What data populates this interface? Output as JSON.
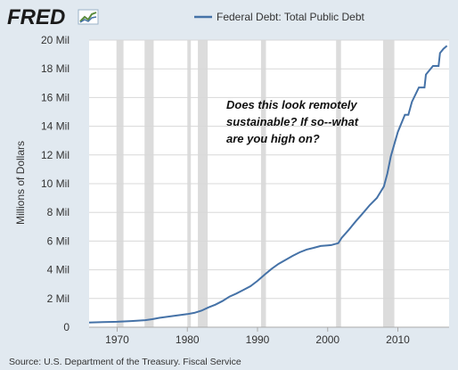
{
  "brand": {
    "logo_text": "FRED"
  },
  "colors": {
    "background": "#e1e9f0",
    "plot_background": "#ffffff",
    "series": "#4572a7",
    "recession": "#dcdcdc",
    "grid": "#d8d8d8",
    "text": "#333333"
  },
  "annotation": {
    "lines": [
      "Does this look remotely",
      "sustainable? If so--what",
      "are you high on?"
    ]
  },
  "source": "Source: U.S. Department of the Treasury. Fiscal Service",
  "chart_data": {
    "type": "line",
    "title": "",
    "xlabel": "",
    "ylabel": "Millions of Dollars",
    "xlim": [
      1966.0,
      2017.3
    ],
    "ylim": [
      0,
      20000000
    ],
    "xticks": [
      1970,
      1980,
      1990,
      2000,
      2010
    ],
    "xtick_labels": [
      "1970",
      "1980",
      "1990",
      "2000",
      "2010"
    ],
    "yticks": [
      0,
      2000000,
      4000000,
      6000000,
      8000000,
      10000000,
      12000000,
      14000000,
      16000000,
      18000000,
      20000000
    ],
    "ytick_labels": [
      "0",
      "2 Mil",
      "4 Mil",
      "6 Mil",
      "8 Mil",
      "10 Mil",
      "12 Mil",
      "14 Mil",
      "16 Mil",
      "18 Mil",
      "20 Mil"
    ],
    "grid": true,
    "legend_position": "top-center",
    "recessions": [
      [
        1969.9,
        1970.9
      ],
      [
        1973.9,
        1975.2
      ],
      [
        1980.0,
        1980.5
      ],
      [
        1981.5,
        1982.9
      ],
      [
        1990.5,
        1991.2
      ],
      [
        2001.2,
        2001.9
      ],
      [
        2007.9,
        2009.5
      ]
    ],
    "series": [
      {
        "name": "Federal Debt: Total Public Debt",
        "x": [
          1966.0,
          1968.0,
          1970.0,
          1972.0,
          1974.0,
          1975.0,
          1976.0,
          1978.0,
          1980.0,
          1981.0,
          1982.0,
          1983.0,
          1984.0,
          1985.0,
          1986.0,
          1987.0,
          1988.0,
          1989.0,
          1990.0,
          1991.0,
          1992.0,
          1993.0,
          1994.0,
          1995.0,
          1996.0,
          1997.0,
          1998.0,
          1999.0,
          2000.0,
          2000.5,
          2001.0,
          2001.5,
          2002.0,
          2003.0,
          2004.0,
          2005.0,
          2006.0,
          2007.0,
          2008.0,
          2008.5,
          2009.0,
          2010.0,
          2011.0,
          2011.5,
          2012.0,
          2013.0,
          2013.8,
          2014.0,
          2015.0,
          2015.8,
          2016.0,
          2016.5,
          2017.0
        ],
        "y": [
          330000,
          360000,
          380000,
          430000,
          490000,
          560000,
          650000,
          780000,
          910000,
          1000000,
          1150000,
          1380000,
          1570000,
          1820000,
          2130000,
          2350000,
          2600000,
          2860000,
          3230000,
          3660000,
          4060000,
          4410000,
          4690000,
          4970000,
          5220000,
          5410000,
          5530000,
          5660000,
          5700000,
          5720000,
          5790000,
          5850000,
          6230000,
          6780000,
          7380000,
          7930000,
          8510000,
          9000000,
          9800000,
          10700000,
          11900000,
          13600000,
          14800000,
          14800000,
          15700000,
          16700000,
          16700000,
          17600000,
          18200000,
          18200000,
          19100000,
          19400000,
          19600000
        ]
      }
    ]
  }
}
